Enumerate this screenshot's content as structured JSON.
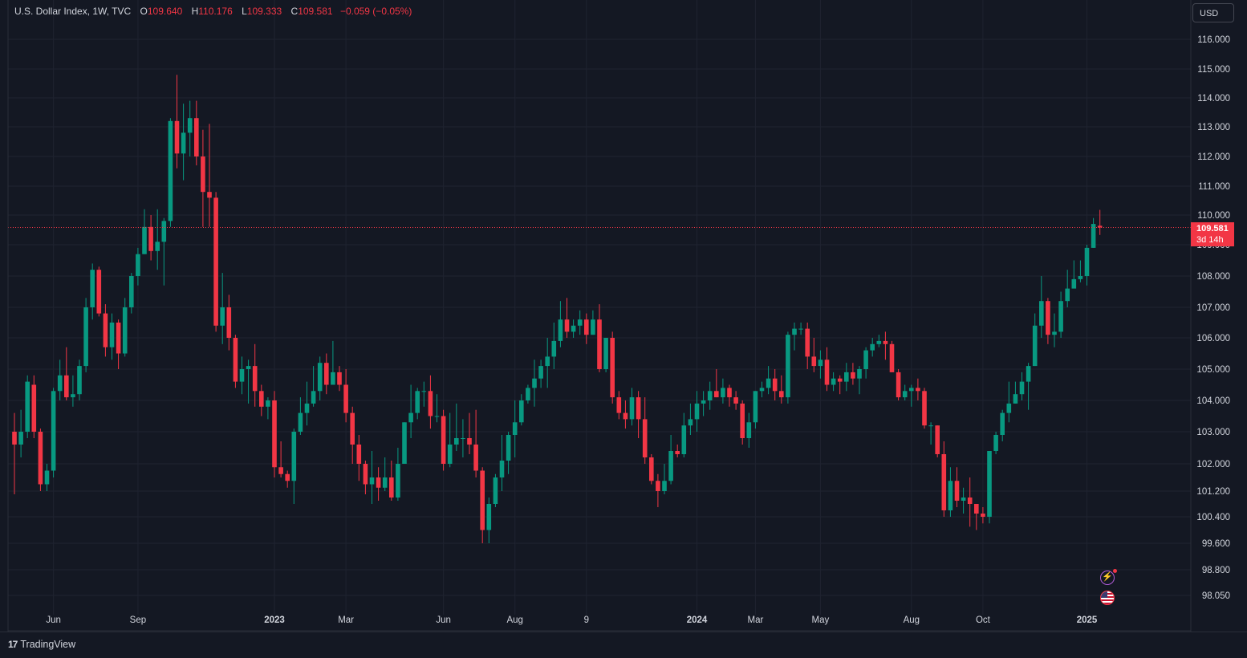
{
  "header": {
    "symbol": "U.S. Dollar Index, 1W, TVC",
    "open_label": "O",
    "open": "109.640",
    "high_label": "H",
    "high": "110.176",
    "low_label": "L",
    "low": "109.333",
    "close_label": "C",
    "close": "109.581",
    "change": "−0.059 (−0.05%)"
  },
  "currency_button": "USD",
  "price_tag": {
    "price": "109.581",
    "countdown": "3d 14h"
  },
  "footer": {
    "brand": "TradingView",
    "brand_mark": "17"
  },
  "icons": {
    "alert": "lightning-icon",
    "event": "us-flag-icon"
  },
  "colors": {
    "up": "#089981",
    "down": "#f23645",
    "background": "#141823",
    "grid": "#1f2330",
    "text": "#d1d4dc"
  },
  "chart_data": {
    "type": "candlestick",
    "title": "U.S. Dollar Index, 1W, TVC",
    "interval": "1W",
    "ylim": [
      97.9,
      116.8
    ],
    "y_ticks": [
      116.0,
      115.0,
      114.0,
      113.0,
      112.0,
      111.0,
      110.0,
      109.0,
      108.0,
      107.0,
      106.0,
      105.0,
      104.0,
      103.0,
      102.0,
      101.2,
      100.4,
      99.6,
      98.8,
      98.05
    ],
    "y_tick_labels": [
      "116.000",
      "115.000",
      "114.000",
      "113.000",
      "112.000",
      "111.000",
      "110.000",
      "109.000",
      "108.000",
      "107.000",
      "106.000",
      "105.000",
      "104.000",
      "103.000",
      "102.000",
      "101.200",
      "100.400",
      "99.600",
      "98.800",
      "98.050"
    ],
    "x_ticks": [
      {
        "label": "Jun",
        "index": 6
      },
      {
        "label": "Sep",
        "index": 19
      },
      {
        "label": "2023",
        "index": 40
      },
      {
        "label": "Mar",
        "index": 51
      },
      {
        "label": "Jun",
        "index": 66
      },
      {
        "label": "Aug",
        "index": 77
      },
      {
        "label": "9",
        "index": 88
      },
      {
        "label": "2024",
        "index": 105
      },
      {
        "label": "Mar",
        "index": 114
      },
      {
        "label": "May",
        "index": 124
      },
      {
        "label": "Aug",
        "index": 138
      },
      {
        "label": "Oct",
        "index": 149
      },
      {
        "label": "2025",
        "index": 165
      }
    ],
    "last_price": 109.581,
    "grid": true,
    "candles": [
      [
        103.0,
        102.6,
        103.6,
        101.1
      ],
      [
        102.6,
        103.0,
        103.7,
        102.2
      ],
      [
        103.0,
        104.6,
        104.8,
        102.8
      ],
      [
        104.5,
        103.0,
        104.8,
        102.8
      ],
      [
        103.0,
        101.4,
        103.1,
        101.2
      ],
      [
        101.4,
        101.8,
        102.0,
        101.2
      ],
      [
        101.8,
        104.3,
        104.4,
        101.6
      ],
      [
        104.3,
        104.8,
        105.3,
        104.0
      ],
      [
        104.8,
        104.1,
        105.7,
        104.0
      ],
      [
        104.1,
        104.2,
        104.8,
        103.8
      ],
      [
        104.2,
        105.1,
        105.3,
        104.0
      ],
      [
        105.1,
        107.0,
        107.3,
        104.9
      ],
      [
        107.0,
        108.2,
        108.4,
        106.6
      ],
      [
        108.2,
        106.8,
        108.3,
        106.7
      ],
      [
        106.8,
        105.7,
        107.1,
        105.4
      ],
      [
        105.7,
        106.5,
        106.8,
        105.3
      ],
      [
        106.5,
        105.5,
        106.6,
        105.0
      ],
      [
        105.5,
        107.0,
        107.3,
        105.4
      ],
      [
        107.0,
        108.0,
        108.1,
        106.8
      ],
      [
        108.0,
        108.7,
        108.9,
        107.7
      ],
      [
        108.7,
        109.6,
        110.2,
        108.7
      ],
      [
        109.6,
        108.8,
        110.0,
        108.5
      ],
      [
        108.8,
        109.1,
        110.2,
        108.2
      ],
      [
        109.1,
        109.8,
        109.9,
        107.7
      ],
      [
        109.8,
        113.2,
        113.3,
        109.6
      ],
      [
        113.2,
        112.1,
        114.8,
        111.6
      ],
      [
        112.1,
        112.8,
        113.8,
        111.2
      ],
      [
        112.8,
        113.3,
        113.9,
        112.0
      ],
      [
        113.3,
        112.0,
        113.9,
        111.7
      ],
      [
        112.0,
        110.8,
        112.9,
        109.6
      ],
      [
        110.8,
        110.6,
        113.1,
        109.6
      ],
      [
        110.6,
        106.4,
        110.8,
        106.2
      ],
      [
        106.4,
        107.0,
        108.1,
        105.8
      ],
      [
        107.0,
        106.0,
        107.4,
        105.6
      ],
      [
        106.0,
        104.6,
        106.1,
        104.4
      ],
      [
        104.6,
        105.0,
        105.4,
        104.2
      ],
      [
        105.0,
        105.1,
        105.3,
        103.9
      ],
      [
        105.1,
        104.3,
        105.8,
        103.8
      ],
      [
        104.3,
        103.8,
        104.5,
        103.5
      ],
      [
        103.8,
        104.0,
        104.1,
        103.4
      ],
      [
        104.0,
        101.9,
        104.3,
        101.6
      ],
      [
        101.9,
        101.7,
        102.7,
        101.6
      ],
      [
        101.7,
        101.5,
        101.8,
        101.3
      ],
      [
        101.5,
        103.0,
        103.1,
        100.8
      ],
      [
        103.0,
        103.6,
        104.1,
        102.9
      ],
      [
        103.6,
        103.9,
        104.6,
        103.2
      ],
      [
        103.9,
        104.3,
        105.1,
        103.8
      ],
      [
        104.3,
        105.2,
        105.4,
        104.0
      ],
      [
        105.2,
        104.5,
        105.5,
        104.2
      ],
      [
        104.5,
        104.9,
        105.9,
        104.6
      ],
      [
        104.9,
        104.5,
        105.1,
        104.3
      ],
      [
        104.5,
        103.6,
        105.0,
        103.3
      ],
      [
        103.6,
        102.6,
        103.8,
        102.0
      ],
      [
        102.6,
        102.0,
        102.9,
        101.5
      ],
      [
        102.0,
        101.4,
        102.1,
        101.1
      ],
      [
        101.4,
        101.6,
        102.4,
        100.8
      ],
      [
        101.6,
        101.3,
        101.9,
        100.9
      ],
      [
        101.3,
        101.6,
        102.2,
        101.2
      ],
      [
        101.6,
        101.0,
        102.1,
        100.9
      ],
      [
        101.0,
        102.0,
        102.5,
        100.9
      ],
      [
        102.0,
        103.3,
        103.3,
        102.6
      ],
      [
        103.3,
        103.6,
        104.5,
        102.8
      ],
      [
        103.6,
        104.3,
        104.4,
        103.4
      ],
      [
        104.3,
        104.3,
        104.6,
        103.8
      ],
      [
        104.3,
        103.5,
        104.8,
        103.1
      ],
      [
        103.5,
        103.5,
        104.2,
        103.3
      ],
      [
        103.5,
        102.0,
        103.7,
        101.8
      ],
      [
        102.0,
        102.6,
        103.6,
        101.9
      ],
      [
        102.6,
        102.8,
        103.9,
        102.4
      ],
      [
        102.8,
        102.8,
        103.4,
        102.2
      ],
      [
        102.8,
        102.6,
        103.6,
        102.3
      ],
      [
        102.6,
        101.8,
        103.7,
        101.6
      ],
      [
        101.8,
        100.0,
        101.9,
        99.6
      ],
      [
        100.0,
        100.8,
        101.0,
        99.6
      ],
      [
        100.8,
        101.6,
        101.7,
        100.7
      ],
      [
        101.6,
        102.1,
        102.9,
        101.2
      ],
      [
        102.1,
        102.9,
        103.0,
        101.7
      ],
      [
        102.9,
        103.3,
        104.0,
        102.2
      ],
      [
        103.3,
        104.0,
        104.2,
        103.2
      ],
      [
        104.0,
        104.4,
        104.5,
        103.9
      ],
      [
        104.4,
        104.7,
        105.3,
        103.8
      ],
      [
        104.7,
        105.1,
        105.3,
        104.4
      ],
      [
        105.1,
        105.4,
        106.0,
        104.4
      ],
      [
        105.4,
        105.9,
        106.5,
        105.0
      ],
      [
        105.9,
        106.6,
        107.2,
        105.7
      ],
      [
        106.6,
        106.2,
        107.3,
        106.0
      ],
      [
        106.2,
        106.4,
        106.6,
        106.0
      ],
      [
        106.4,
        106.6,
        106.9,
        106.1
      ],
      [
        106.6,
        106.1,
        106.8,
        105.8
      ],
      [
        106.1,
        106.6,
        106.9,
        106.1
      ],
      [
        106.6,
        105.0,
        107.1,
        104.9
      ],
      [
        105.0,
        106.0,
        106.0,
        104.9
      ],
      [
        106.0,
        104.1,
        106.2,
        103.9
      ],
      [
        104.1,
        103.6,
        104.3,
        103.4
      ],
      [
        103.6,
        103.4,
        104.0,
        103.1
      ],
      [
        103.4,
        104.1,
        104.4,
        103.2
      ],
      [
        104.1,
        103.4,
        104.3,
        102.8
      ],
      [
        103.4,
        102.2,
        104.1,
        102.0
      ],
      [
        102.2,
        101.5,
        102.3,
        101.4
      ],
      [
        101.5,
        101.2,
        101.7,
        100.7
      ],
      [
        101.2,
        101.5,
        102.0,
        101.1
      ],
      [
        101.5,
        102.4,
        102.9,
        101.4
      ],
      [
        102.4,
        102.3,
        102.6,
        102.2
      ],
      [
        102.3,
        103.2,
        103.6,
        102.2
      ],
      [
        103.2,
        103.4,
        103.9,
        102.9
      ],
      [
        103.4,
        103.9,
        104.3,
        103.0
      ],
      [
        103.9,
        104.0,
        104.3,
        103.5
      ],
      [
        104.0,
        104.3,
        104.6,
        103.7
      ],
      [
        104.3,
        104.1,
        105.0,
        104.1
      ],
      [
        104.1,
        104.4,
        104.7,
        103.9
      ],
      [
        104.4,
        104.1,
        104.5,
        103.8
      ],
      [
        104.1,
        103.9,
        104.3,
        103.7
      ],
      [
        103.9,
        102.8,
        104.0,
        102.6
      ],
      [
        102.8,
        103.3,
        103.6,
        102.5
      ],
      [
        103.3,
        104.3,
        104.3,
        103.1
      ],
      [
        104.3,
        104.4,
        104.6,
        104.1
      ],
      [
        104.4,
        104.7,
        105.1,
        104.2
      ],
      [
        104.7,
        104.3,
        105.0,
        104.0
      ],
      [
        104.3,
        104.1,
        104.8,
        103.9
      ],
      [
        104.1,
        106.1,
        106.2,
        103.9
      ],
      [
        106.1,
        106.3,
        106.5,
        105.6
      ],
      [
        106.3,
        106.3,
        106.5,
        106.1
      ],
      [
        106.3,
        105.4,
        106.5,
        105.0
      ],
      [
        105.4,
        105.1,
        106.0,
        104.9
      ],
      [
        105.1,
        105.3,
        105.6,
        104.7
      ],
      [
        105.3,
        104.5,
        105.7,
        104.3
      ],
      [
        104.5,
        104.7,
        104.9,
        104.3
      ],
      [
        104.7,
        104.6,
        104.8,
        104.2
      ],
      [
        104.6,
        104.9,
        105.2,
        104.3
      ],
      [
        104.9,
        104.7,
        105.2,
        104.5
      ],
      [
        104.7,
        105.0,
        105.1,
        104.2
      ],
      [
        105.0,
        105.6,
        105.7,
        104.7
      ],
      [
        105.6,
        105.8,
        106.0,
        105.4
      ],
      [
        105.8,
        105.9,
        106.1,
        105.7
      ],
      [
        105.9,
        105.8,
        106.2,
        105.3
      ],
      [
        105.8,
        104.9,
        105.9,
        104.9
      ],
      [
        104.9,
        104.1,
        105.0,
        104.0
      ],
      [
        104.1,
        104.3,
        104.5,
        104.0
      ],
      [
        104.3,
        104.4,
        104.5,
        103.8
      ],
      [
        104.4,
        104.3,
        104.7,
        104.0
      ],
      [
        104.3,
        103.2,
        104.4,
        103.1
      ],
      [
        103.2,
        103.2,
        103.3,
        102.6
      ],
      [
        103.2,
        102.3,
        103.2,
        102.2
      ],
      [
        102.3,
        100.6,
        102.7,
        100.4
      ],
      [
        100.6,
        101.5,
        101.9,
        100.4
      ],
      [
        101.5,
        100.9,
        101.9,
        100.7
      ],
      [
        100.9,
        101.0,
        101.3,
        100.5
      ],
      [
        101.0,
        100.8,
        101.6,
        100.1
      ],
      [
        100.8,
        100.5,
        100.8,
        100.0
      ],
      [
        100.5,
        100.4,
        100.7,
        100.2
      ],
      [
        100.4,
        102.4,
        102.4,
        100.2
      ],
      [
        102.4,
        102.9,
        103.0,
        102.3
      ],
      [
        102.9,
        103.6,
        103.7,
        102.7
      ],
      [
        103.6,
        103.9,
        104.6,
        103.3
      ],
      [
        103.9,
        104.2,
        104.6,
        103.9
      ],
      [
        104.2,
        104.6,
        104.9,
        104.0
      ],
      [
        104.6,
        105.1,
        105.2,
        103.7
      ],
      [
        105.1,
        106.4,
        106.8,
        105.1
      ],
      [
        106.4,
        107.2,
        108.0,
        106.0
      ],
      [
        107.2,
        106.1,
        107.3,
        105.8
      ],
      [
        106.1,
        106.2,
        106.8,
        105.7
      ],
      [
        106.2,
        107.2,
        107.5,
        106.0
      ],
      [
        107.2,
        107.6,
        108.2,
        107.0
      ],
      [
        107.6,
        107.9,
        108.5,
        107.8
      ],
      [
        107.9,
        108.0,
        108.5,
        107.8
      ],
      [
        108.0,
        108.9,
        109.0,
        107.7
      ],
      [
        108.9,
        109.7,
        109.9,
        108.9
      ],
      [
        109.64,
        109.58,
        110.18,
        109.33
      ]
    ]
  }
}
